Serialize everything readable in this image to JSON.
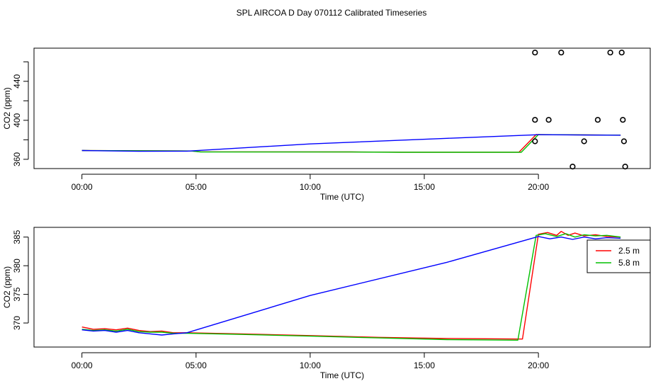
{
  "figure": {
    "title": "SPL AIRCOA D  Day 070112  Calibrated Timeseries"
  },
  "chart_data": [
    {
      "type": "line",
      "xlabel": "Time (UTC)",
      "ylabel": "CO2 (ppm)",
      "xlim": [
        -2.1,
        24.9
      ],
      "ylim": [
        350.5,
        474
      ],
      "x_ticks": [
        0,
        5,
        10,
        15,
        20
      ],
      "x_tick_labels": [
        "00:00",
        "05:00",
        "10:00",
        "15:00",
        "20:00"
      ],
      "y_ticks": [
        360,
        380,
        400,
        420,
        440,
        460
      ],
      "y_tick_labels": [
        "360",
        "",
        "400",
        "",
        "440",
        ""
      ],
      "grid": false,
      "legend": "none",
      "series": [
        {
          "color": "#ff0000",
          "style": "line",
          "points": [
            [
              0.0,
              369.0
            ],
            [
              4.8,
              368.5
            ],
            [
              5.2,
              367.7
            ],
            [
              11.8,
              367.6
            ],
            [
              14.0,
              367.3
            ],
            [
              19.15,
              367.3
            ],
            [
              19.9,
              385.4
            ],
            [
              23.6,
              384.8
            ]
          ]
        },
        {
          "color": "#00c000",
          "style": "line",
          "points": [
            [
              0.0,
              369.0
            ],
            [
              4.8,
              368.5
            ],
            [
              5.2,
              367.6
            ],
            [
              11.8,
              367.5
            ],
            [
              14.0,
              367.2
            ],
            [
              19.25,
              367.2
            ],
            [
              20.0,
              385.4
            ],
            [
              23.6,
              384.8
            ]
          ]
        },
        {
          "color": "#0000ff",
          "style": "line",
          "points": [
            [
              0.0,
              369.0
            ],
            [
              2.5,
              368.2
            ],
            [
              4.6,
              368.4
            ],
            [
              10.0,
              375.8
            ],
            [
              16.0,
              381.5
            ],
            [
              20.0,
              385.2
            ],
            [
              23.6,
              384.7
            ]
          ]
        },
        {
          "color": "#000000",
          "style": "points",
          "points": [
            [
              19.85,
              469.5
            ],
            [
              21.0,
              469.5
            ],
            [
              23.15,
              469.5
            ],
            [
              23.65,
              469.5
            ],
            [
              19.85,
              400.5
            ],
            [
              20.45,
              400.5
            ],
            [
              22.6,
              400.5
            ],
            [
              23.7,
              400.5
            ],
            [
              19.85,
              378.5
            ],
            [
              22.0,
              378.5
            ],
            [
              23.75,
              378.5
            ],
            [
              21.5,
              352.5
            ],
            [
              23.8,
              352.5
            ]
          ]
        }
      ]
    },
    {
      "type": "line",
      "xlabel": "Time (UTC)",
      "ylabel": "CO2 (ppm)",
      "xlim": [
        -2.1,
        24.9
      ],
      "ylim": [
        365.8,
        386.7
      ],
      "x_ticks": [
        0,
        5,
        10,
        15,
        20
      ],
      "x_tick_labels": [
        "00:00",
        "05:00",
        "10:00",
        "15:00",
        "20:00"
      ],
      "y_ticks": [
        370,
        375,
        380,
        385
      ],
      "y_tick_labels": [
        "370",
        "375",
        "380",
        "385"
      ],
      "grid": false,
      "legend": "top-right",
      "series": [
        {
          "name": "2.5 m",
          "color": "#ff0000",
          "style": "line",
          "points": [
            [
              0.0,
              369.3
            ],
            [
              0.5,
              368.9
            ],
            [
              1.0,
              369.0
            ],
            [
              1.5,
              368.8
            ],
            [
              2.0,
              369.1
            ],
            [
              2.5,
              368.7
            ],
            [
              3.0,
              368.5
            ],
            [
              3.5,
              368.6
            ],
            [
              4.0,
              368.3
            ],
            [
              4.6,
              368.3
            ],
            [
              7.0,
              368.1
            ],
            [
              10.0,
              367.8
            ],
            [
              13.0,
              367.5
            ],
            [
              16.0,
              367.3
            ],
            [
              19.3,
              367.2
            ],
            [
              20.0,
              385.5
            ],
            [
              20.4,
              385.8
            ],
            [
              20.8,
              385.3
            ],
            [
              21.0,
              386.0
            ],
            [
              21.3,
              385.3
            ],
            [
              21.6,
              385.7
            ],
            [
              22.0,
              385.2
            ],
            [
              22.5,
              385.4
            ],
            [
              23.0,
              385.1
            ],
            [
              23.6,
              385.0
            ]
          ]
        },
        {
          "name": "5.8 m",
          "color": "#00c000",
          "style": "line",
          "points": [
            [
              0.0,
              368.9
            ],
            [
              0.5,
              368.7
            ],
            [
              1.0,
              368.8
            ],
            [
              1.5,
              368.6
            ],
            [
              2.0,
              368.9
            ],
            [
              2.5,
              368.5
            ],
            [
              3.0,
              368.4
            ],
            [
              3.5,
              368.4
            ],
            [
              4.0,
              368.2
            ],
            [
              4.6,
              368.2
            ],
            [
              7.0,
              368.0
            ],
            [
              10.0,
              367.7
            ],
            [
              13.0,
              367.4
            ],
            [
              16.0,
              367.1
            ],
            [
              19.1,
              367.0
            ],
            [
              19.9,
              385.3
            ],
            [
              20.3,
              385.6
            ],
            [
              20.8,
              385.1
            ],
            [
              21.2,
              385.6
            ],
            [
              21.6,
              385.0
            ],
            [
              22.0,
              385.4
            ],
            [
              22.5,
              385.2
            ],
            [
              23.0,
              385.3
            ],
            [
              23.6,
              385.0
            ]
          ]
        },
        {
          "color": "#0000ff",
          "style": "line",
          "points": [
            [
              0.0,
              368.8
            ],
            [
              0.5,
              368.6
            ],
            [
              1.0,
              368.7
            ],
            [
              1.5,
              368.4
            ],
            [
              2.0,
              368.7
            ],
            [
              2.5,
              368.3
            ],
            [
              3.0,
              368.1
            ],
            [
              3.5,
              367.9
            ],
            [
              4.0,
              368.1
            ],
            [
              4.6,
              368.3
            ],
            [
              10.0,
              374.8
            ],
            [
              16.0,
              380.6
            ],
            [
              20.0,
              385.1
            ],
            [
              20.5,
              384.7
            ],
            [
              21.0,
              385.0
            ],
            [
              21.5,
              384.6
            ],
            [
              22.0,
              385.0
            ],
            [
              22.5,
              384.7
            ],
            [
              23.0,
              384.9
            ],
            [
              23.6,
              384.8
            ]
          ]
        }
      ]
    }
  ]
}
